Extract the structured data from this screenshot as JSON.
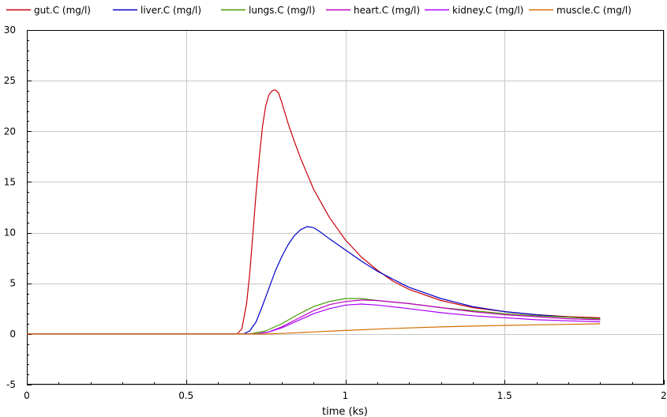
{
  "chart_data": {
    "type": "line",
    "xlabel": "time (ks)",
    "ylabel": "",
    "xlim": [
      0,
      2
    ],
    "ylim": [
      -5,
      30
    ],
    "xticks": [
      0,
      0.5,
      1,
      1.5,
      2
    ],
    "xtick_labels": [
      "0",
      "0.5",
      "1",
      "1.5",
      "2"
    ],
    "yticks": [
      -5,
      0,
      5,
      10,
      15,
      20,
      25,
      30
    ],
    "ytick_labels": [
      "-5",
      "0",
      "5",
      "10",
      "15",
      "20",
      "25",
      "30"
    ],
    "grid": true,
    "legend_position": "top",
    "series": [
      {
        "name": "gut.C (mg/l)",
        "color": "#c8000a",
        "points": [
          [
            0,
            0
          ],
          [
            0.66,
            0
          ],
          [
            0.675,
            0.5
          ],
          [
            0.69,
            3
          ],
          [
            0.7,
            6
          ],
          [
            0.71,
            10
          ],
          [
            0.72,
            14
          ],
          [
            0.73,
            17.5
          ],
          [
            0.74,
            20.5
          ],
          [
            0.75,
            22.5
          ],
          [
            0.76,
            23.6
          ],
          [
            0.77,
            24
          ],
          [
            0.78,
            24.1
          ],
          [
            0.79,
            23.8
          ],
          [
            0.8,
            22.9
          ],
          [
            0.82,
            20.8
          ],
          [
            0.84,
            19
          ],
          [
            0.86,
            17.3
          ],
          [
            0.88,
            15.8
          ],
          [
            0.9,
            14.3
          ],
          [
            0.95,
            11.5
          ],
          [
            1.0,
            9.3
          ],
          [
            1.05,
            7.6
          ],
          [
            1.1,
            6.3
          ],
          [
            1.15,
            5.2
          ],
          [
            1.2,
            4.4
          ],
          [
            1.3,
            3.3
          ],
          [
            1.4,
            2.6
          ],
          [
            1.5,
            2.2
          ],
          [
            1.6,
            1.9
          ],
          [
            1.7,
            1.7
          ],
          [
            1.8,
            1.6
          ]
        ]
      },
      {
        "name": "liver.C (mg/l)",
        "color": "#0000c8",
        "points": [
          [
            0,
            0
          ],
          [
            0.68,
            0
          ],
          [
            0.7,
            0.3
          ],
          [
            0.72,
            1.2
          ],
          [
            0.74,
            2.8
          ],
          [
            0.76,
            4.5
          ],
          [
            0.78,
            6.2
          ],
          [
            0.8,
            7.6
          ],
          [
            0.82,
            8.8
          ],
          [
            0.84,
            9.7
          ],
          [
            0.86,
            10.3
          ],
          [
            0.88,
            10.6
          ],
          [
            0.9,
            10.5
          ],
          [
            0.92,
            10.1
          ],
          [
            0.95,
            9.4
          ],
          [
            1.0,
            8.3
          ],
          [
            1.05,
            7.2
          ],
          [
            1.1,
            6.2
          ],
          [
            1.15,
            5.4
          ],
          [
            1.2,
            4.6
          ],
          [
            1.3,
            3.5
          ],
          [
            1.4,
            2.7
          ],
          [
            1.5,
            2.2
          ],
          [
            1.6,
            1.9
          ],
          [
            1.7,
            1.65
          ],
          [
            1.8,
            1.5
          ]
        ]
      },
      {
        "name": "lungs.C (mg/l)",
        "color": "#4a9a00",
        "points": [
          [
            0,
            0
          ],
          [
            0.7,
            0
          ],
          [
            0.75,
            0.3
          ],
          [
            0.8,
            1.0
          ],
          [
            0.85,
            1.9
          ],
          [
            0.9,
            2.7
          ],
          [
            0.95,
            3.2
          ],
          [
            1.0,
            3.5
          ],
          [
            1.05,
            3.5
          ],
          [
            1.1,
            3.3
          ],
          [
            1.2,
            3.0
          ],
          [
            1.3,
            2.6
          ],
          [
            1.4,
            2.3
          ],
          [
            1.5,
            2.0
          ],
          [
            1.6,
            1.8
          ],
          [
            1.7,
            1.65
          ],
          [
            1.8,
            1.5
          ]
        ]
      },
      {
        "name": "heart.C (mg/l)",
        "color": "#c000c0",
        "points": [
          [
            0,
            0
          ],
          [
            0.72,
            0
          ],
          [
            0.76,
            0.2
          ],
          [
            0.8,
            0.7
          ],
          [
            0.85,
            1.5
          ],
          [
            0.9,
            2.3
          ],
          [
            0.95,
            2.9
          ],
          [
            1.0,
            3.2
          ],
          [
            1.05,
            3.35
          ],
          [
            1.1,
            3.3
          ],
          [
            1.2,
            3.0
          ],
          [
            1.3,
            2.6
          ],
          [
            1.4,
            2.2
          ],
          [
            1.5,
            1.9
          ],
          [
            1.6,
            1.7
          ],
          [
            1.7,
            1.5
          ],
          [
            1.8,
            1.4
          ]
        ]
      },
      {
        "name": "kidney.C (mg/l)",
        "color": "#aa00ff",
        "points": [
          [
            0,
            0
          ],
          [
            0.72,
            0
          ],
          [
            0.76,
            0.2
          ],
          [
            0.8,
            0.6
          ],
          [
            0.85,
            1.3
          ],
          [
            0.9,
            2.0
          ],
          [
            0.95,
            2.5
          ],
          [
            1.0,
            2.85
          ],
          [
            1.05,
            2.95
          ],
          [
            1.1,
            2.85
          ],
          [
            1.2,
            2.5
          ],
          [
            1.3,
            2.1
          ],
          [
            1.4,
            1.8
          ],
          [
            1.5,
            1.6
          ],
          [
            1.6,
            1.4
          ],
          [
            1.7,
            1.3
          ],
          [
            1.8,
            1.2
          ]
        ]
      },
      {
        "name": "muscle.C (mg/l)",
        "color": "#d26e00",
        "points": [
          [
            0,
            0
          ],
          [
            0.75,
            0
          ],
          [
            0.8,
            0.05
          ],
          [
            0.85,
            0.12
          ],
          [
            0.9,
            0.2
          ],
          [
            1.0,
            0.35
          ],
          [
            1.1,
            0.48
          ],
          [
            1.2,
            0.6
          ],
          [
            1.3,
            0.7
          ],
          [
            1.4,
            0.78
          ],
          [
            1.5,
            0.85
          ],
          [
            1.6,
            0.9
          ],
          [
            1.7,
            0.95
          ],
          [
            1.8,
            1.0
          ]
        ]
      }
    ]
  }
}
